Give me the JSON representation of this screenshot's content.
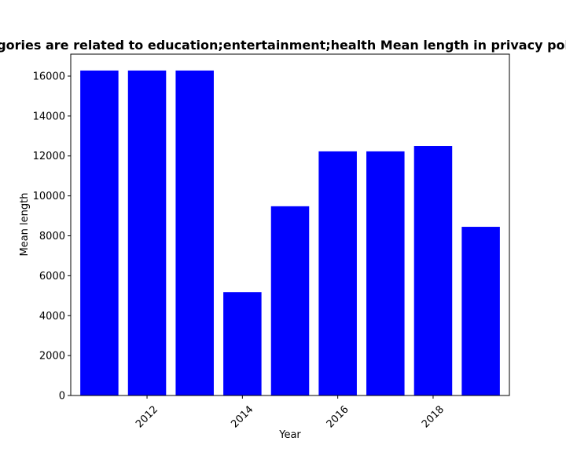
{
  "chart_data": {
    "type": "bar",
    "title": "Categories are related to education;entertainment;health Mean length in privacy policies",
    "xlabel": "Year",
    "ylabel": "Mean length",
    "x": [
      2011,
      2012,
      2013,
      2014,
      2015,
      2016,
      2017,
      2018,
      2019
    ],
    "values": [
      16280,
      16280,
      16280,
      5180,
      9480,
      12230,
      12230,
      12500,
      8450
    ],
    "xlim": [
      2010.4,
      2019.6
    ],
    "ylim": [
      0,
      17100
    ],
    "xticks": [
      2012,
      2014,
      2016,
      2018
    ],
    "xtick_labels": [
      "2012",
      "2014",
      "2016",
      "2018"
    ],
    "yticks": [
      0,
      2000,
      4000,
      6000,
      8000,
      10000,
      12000,
      14000,
      16000
    ],
    "ytick_labels": [
      "0",
      "2000",
      "4000",
      "6000",
      "8000",
      "10000",
      "12000",
      "14000",
      "16000"
    ],
    "bar_color": "#0000ff",
    "grid": false,
    "legend": "none"
  }
}
